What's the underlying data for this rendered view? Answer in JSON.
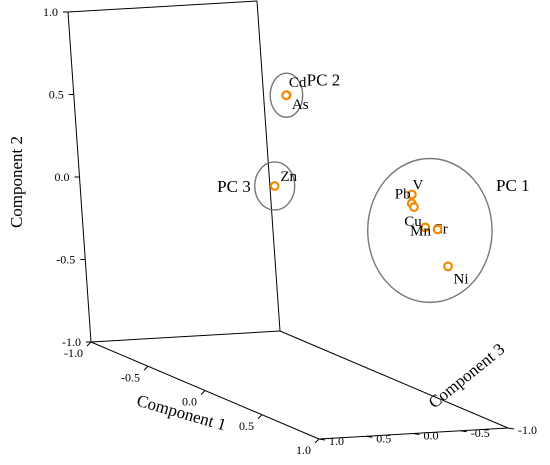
{
  "chart_data": {
    "type": "scatter",
    "projection": "3d",
    "colors": {
      "marker": "#f08a00",
      "axis": "#000000",
      "ellipse": "#777777"
    },
    "axes": {
      "x": {
        "label": "Component 1",
        "range": [
          -1.0,
          1.0
        ],
        "ticks": [
          -1.0,
          -0.5,
          0.0,
          0.5,
          1.0
        ],
        "tick_labels": [
          "-1.0",
          "-0.5",
          "0.0",
          "0.5",
          "1.0"
        ]
      },
      "y": {
        "label": "Component 2",
        "range": [
          -1.0,
          1.0
        ],
        "ticks": [
          -1.0,
          -0.5,
          0.0,
          0.5,
          1.0
        ],
        "tick_labels": [
          "-1.0",
          "-0.5",
          "0.0",
          "0.5",
          "1.0"
        ]
      },
      "z": {
        "label": "Component 3",
        "range": [
          -1.0,
          1.0
        ],
        "ticks": [
          -1.0,
          -0.5,
          0.0,
          0.5,
          1.0
        ],
        "tick_labels": [
          "-1.0",
          "-0.5",
          "0.0",
          "0.5",
          "1.0"
        ]
      }
    },
    "points": [
      {
        "label": "Cd",
        "x": 0.71,
        "y": 0.99,
        "z": -0.75
      },
      {
        "label": "As",
        "x": 0.68,
        "y": 0.98,
        "z": -0.72
      },
      {
        "label": "Zn",
        "x": 0.03,
        "y": 0.22,
        "z": -0.15
      },
      {
        "label": "V",
        "x": 0.75,
        "y": 0.36,
        "z": 0.45
      },
      {
        "label": "Pb",
        "x": 0.7,
        "y": 0.29,
        "z": 0.5
      },
      {
        "label": "Cu",
        "x": 0.71,
        "y": 0.27,
        "z": 0.51
      },
      {
        "label": "Cr",
        "x": 0.85,
        "y": 0.19,
        "z": 0.45
      },
      {
        "label": "Mn",
        "x": 0.66,
        "y": 0.11,
        "z": 0.8
      },
      {
        "label": "Ni",
        "x": 0.86,
        "y": -0.05,
        "z": 0.65
      }
    ],
    "groups": [
      {
        "name": "PC 1",
        "members": [
          "V",
          "Pb",
          "Cu",
          "Cr",
          "Mn",
          "Ni"
        ]
      },
      {
        "name": "PC 2",
        "members": [
          "Cd",
          "As"
        ]
      },
      {
        "name": "PC 3",
        "members": [
          "Zn"
        ]
      }
    ]
  }
}
